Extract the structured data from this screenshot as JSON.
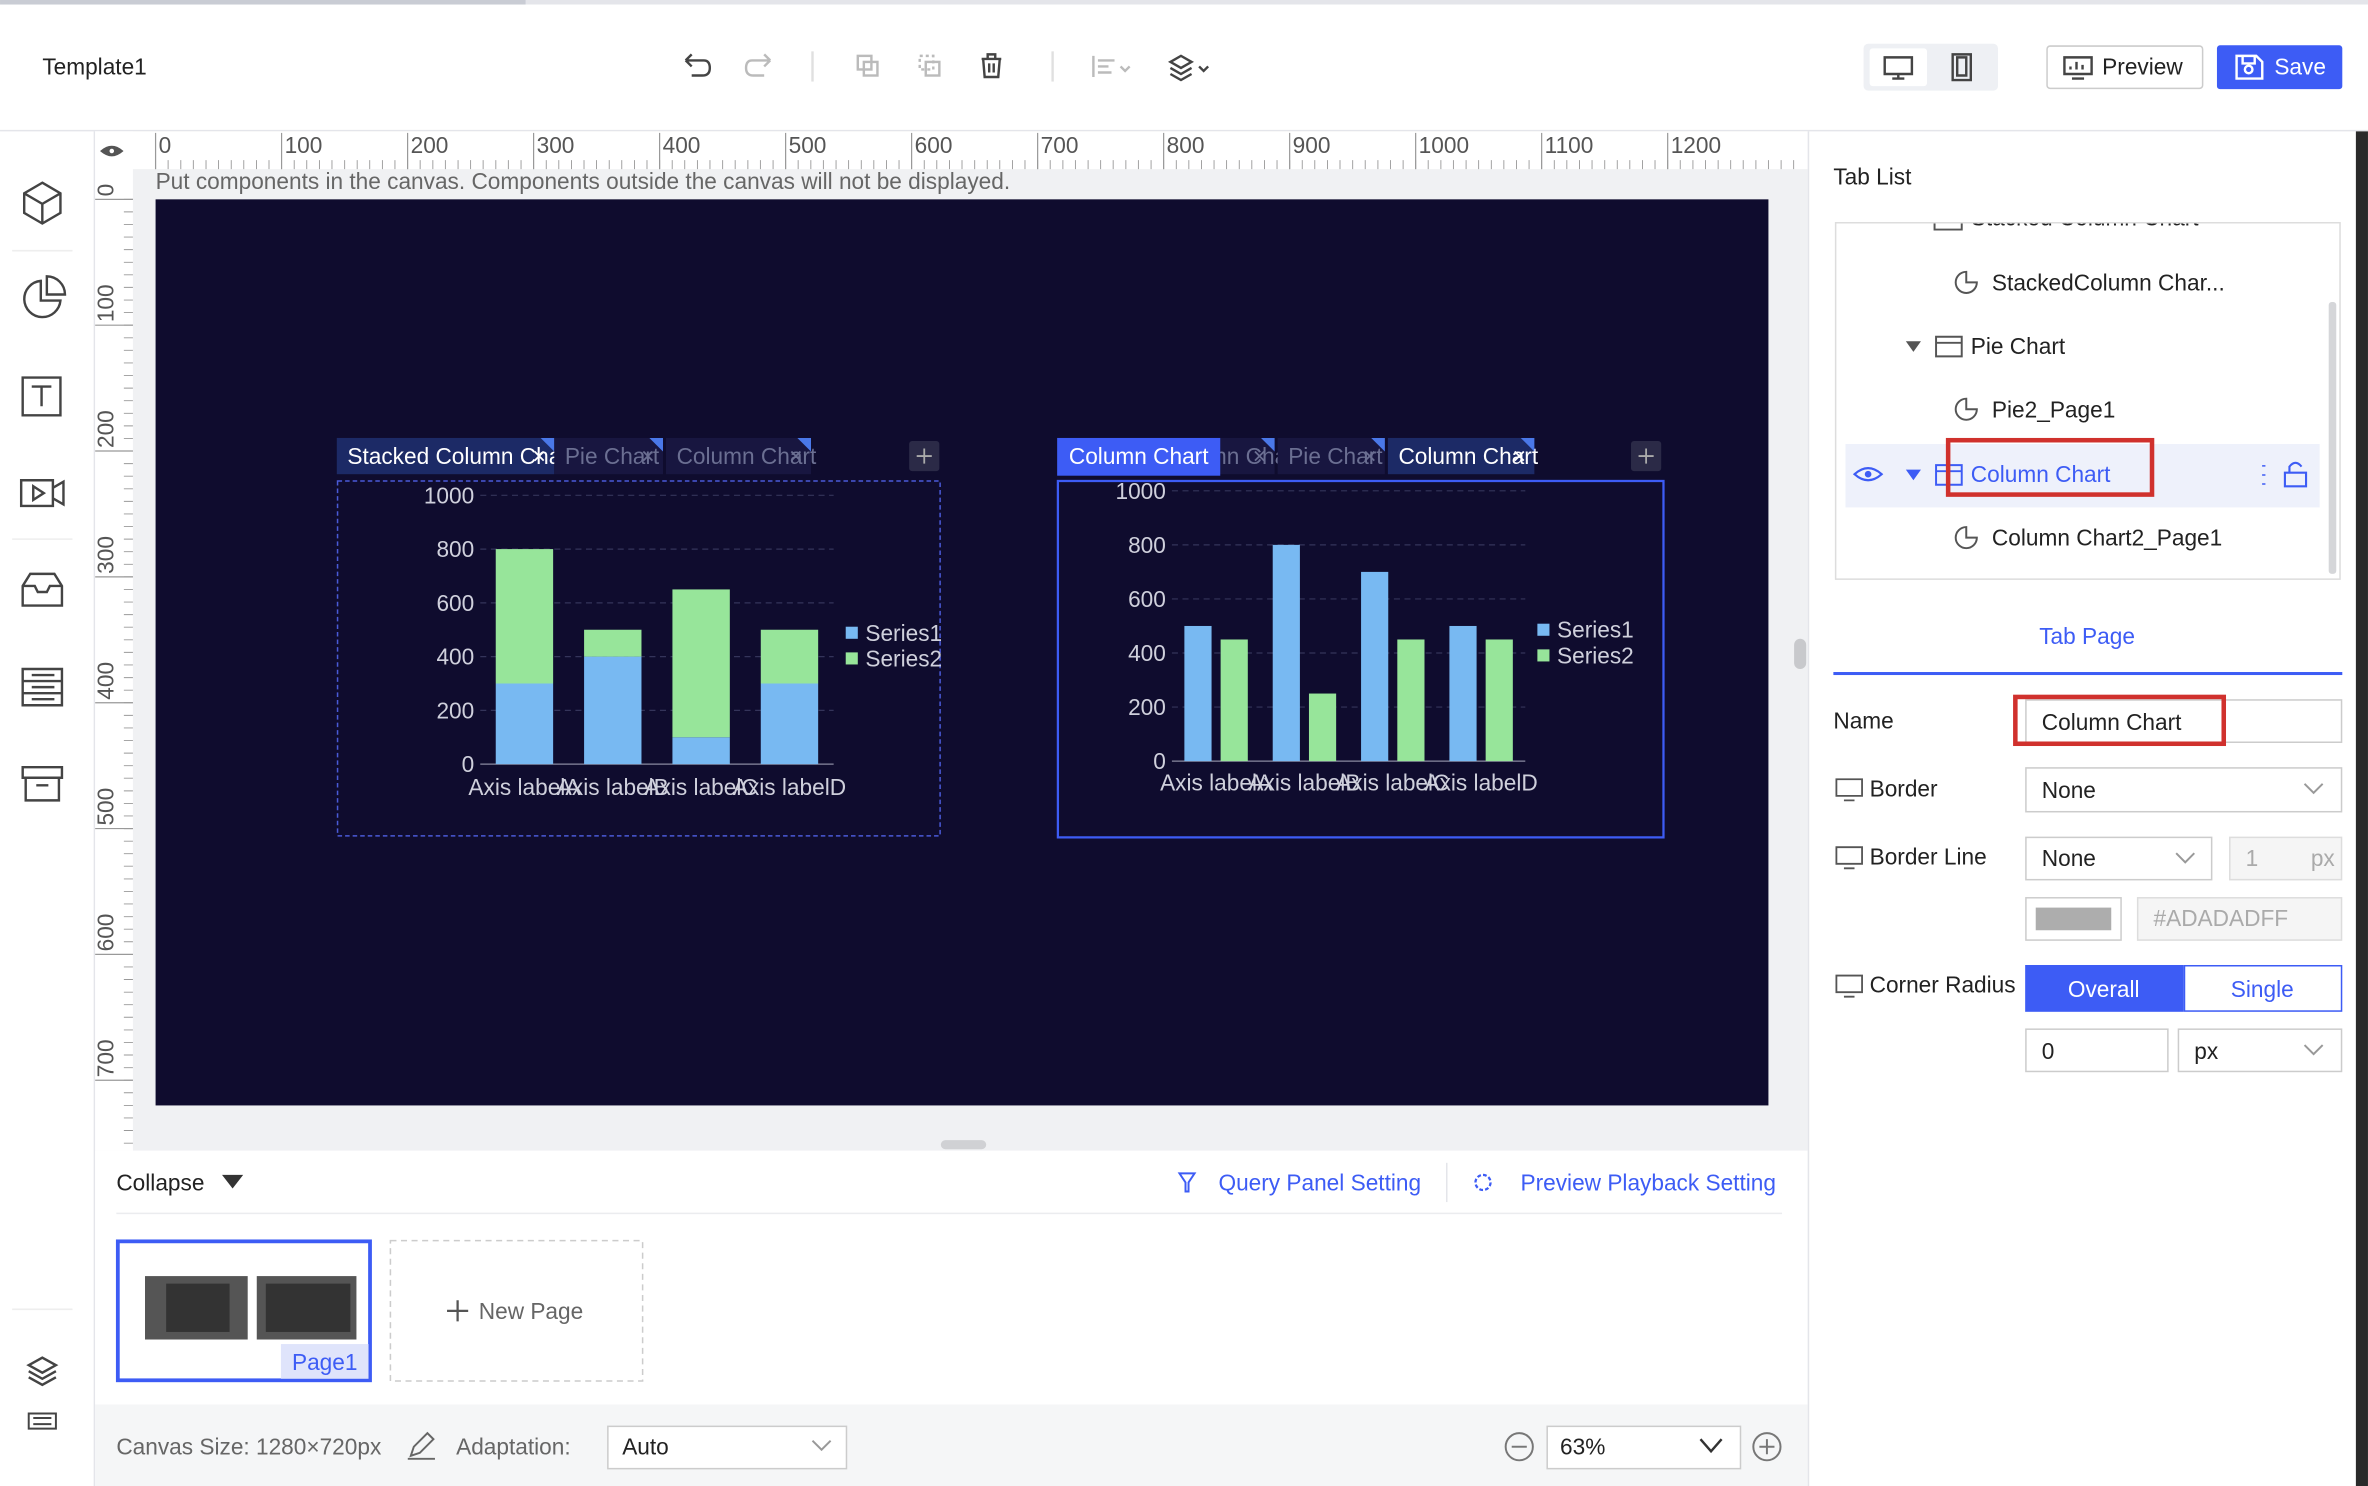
{
  "header": {
    "title": "Template1",
    "preview": "Preview",
    "save": "Save"
  },
  "ruler": {
    "x_ticks": [
      0,
      100,
      200,
      300,
      400,
      500,
      600,
      700,
      800,
      900,
      1000,
      1100,
      1200
    ],
    "y_ticks": [
      0,
      100,
      200,
      300,
      400,
      500,
      600,
      700
    ]
  },
  "canvas_hint": "Put components in the canvas. Components outside the canvas will not be displayed.",
  "canvas": {
    "components": [
      {
        "tabs": [
          "Stacked Column Chart",
          "Pie Chart",
          "Column Chart"
        ]
      },
      {
        "label": "Column Chart",
        "tabs": [
          "Column Chart",
          "Pie Chart",
          "Column Chart"
        ]
      }
    ]
  },
  "chart_data": [
    {
      "type": "bar",
      "stacked": true,
      "categories": [
        "Axis labelA",
        "Axis labelB",
        "Axis labelC",
        "Axis labelD"
      ],
      "series": [
        {
          "name": "Series1",
          "color": "#78b9f2",
          "values": [
            300,
            400,
            100,
            300
          ]
        },
        {
          "name": "Series2",
          "color": "#97e59a",
          "values": [
            500,
            100,
            550,
            200
          ]
        }
      ],
      "ylim": [
        0,
        1000
      ],
      "yticks": [
        0,
        200,
        400,
        600,
        800,
        1000
      ],
      "grid": true,
      "legend": "right"
    },
    {
      "type": "bar",
      "stacked": false,
      "categories": [
        "Axis labelA",
        "Axis labelB",
        "Axis labelC",
        "Axis labelD"
      ],
      "series": [
        {
          "name": "Series1",
          "color": "#78b9f2",
          "values": [
            500,
            800,
            700,
            500
          ]
        },
        {
          "name": "Series2",
          "color": "#97e59a",
          "values": [
            450,
            250,
            450,
            450
          ]
        }
      ],
      "ylim": [
        0,
        1000
      ],
      "yticks": [
        0,
        200,
        400,
        600,
        800,
        1000
      ],
      "grid": true,
      "legend": "right"
    }
  ],
  "tab_list": {
    "title": "Tab List",
    "items": [
      "Stacked Column Chart",
      "StackedColumn Char...",
      "Pie Chart",
      "Pie2_Page1",
      "Column Chart",
      "Column Chart2_Page1"
    ]
  },
  "tab_page": {
    "title": "Tab Page",
    "name_label": "Name",
    "name_value": "Column Chart",
    "border_label": "Border",
    "border_value": "None",
    "border_line_label": "Border Line",
    "border_line_style": "None",
    "border_line_width": 1,
    "border_line_unit": "px",
    "border_color": "#ADADADFF",
    "corner_radius_label": "Corner Radius",
    "corner_modes": [
      "Overall",
      "Single"
    ],
    "corner_value": 0,
    "corner_unit": "px"
  },
  "bottom_panel": {
    "collapse": "Collapse",
    "query_setting": "Query Panel Setting",
    "playback_setting": "Preview Playback Setting",
    "pages": [
      "Page1"
    ],
    "new_page": "New Page"
  },
  "footer": {
    "canvas_size": "Canvas Size: 1280×720px",
    "adaptation_label": "Adaptation:",
    "adaptation_value": "Auto",
    "zoom": "63%"
  }
}
